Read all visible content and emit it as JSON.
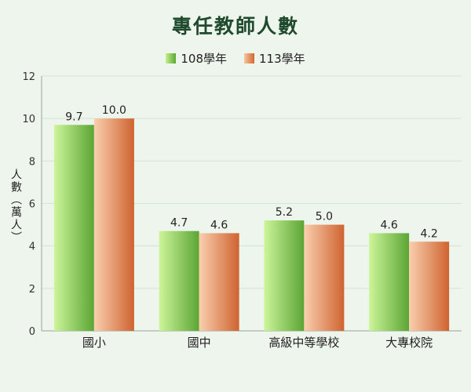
{
  "chart_data": {
    "type": "bar",
    "title": "專任教師人數",
    "ylabel": "人數（萬人）",
    "xlabel": "",
    "categories": [
      "國小",
      "國中",
      "高級中等學校",
      "大專校院"
    ],
    "series": [
      {
        "name": "108學年",
        "values": [
          9.7,
          4.7,
          5.2,
          4.6
        ]
      },
      {
        "name": "113學年",
        "values": [
          10.0,
          4.6,
          5.0,
          4.2
        ]
      }
    ],
    "ylim": [
      0,
      12
    ],
    "yticks": [
      0,
      2,
      4,
      6,
      8,
      10,
      12
    ],
    "grid": true,
    "legend_position": "top-center",
    "colors": {
      "series_0": "#8cc950",
      "series_1": "#e88d5a",
      "title": "#1f4a2e",
      "background": "#eef5ec"
    }
  }
}
